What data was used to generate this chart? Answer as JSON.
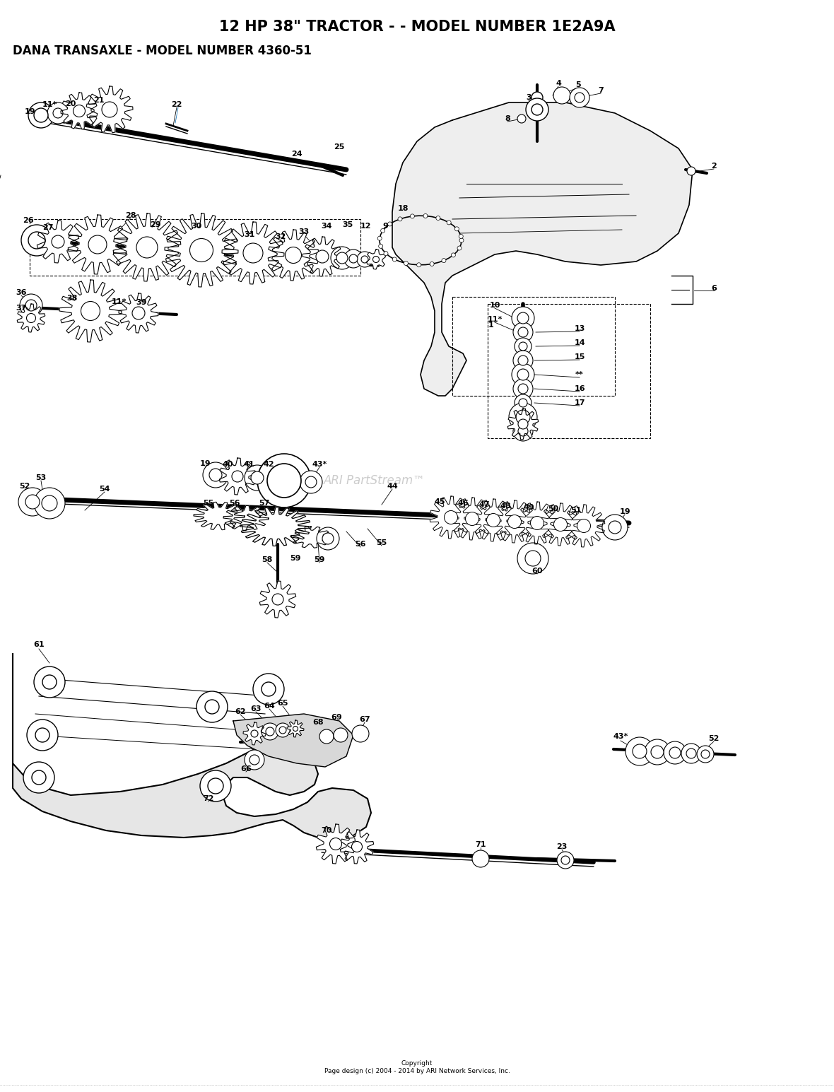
{
  "title1": "12 HP 38\" TRACTOR - - MODEL NUMBER 1E2A9A",
  "title2": "DANA TRANSAXLE - MODEL NUMBER 4360-51",
  "copyright": "Copyright\nPage design (c) 2004 - 2014 by ARI Network Services, Inc.",
  "watermark": "ARI PartStream™",
  "bg_color": "#ffffff",
  "title1_fontsize": 15,
  "title2_fontsize": 12,
  "fig_width": 11.8,
  "fig_height": 15.45,
  "label_fs": 8
}
